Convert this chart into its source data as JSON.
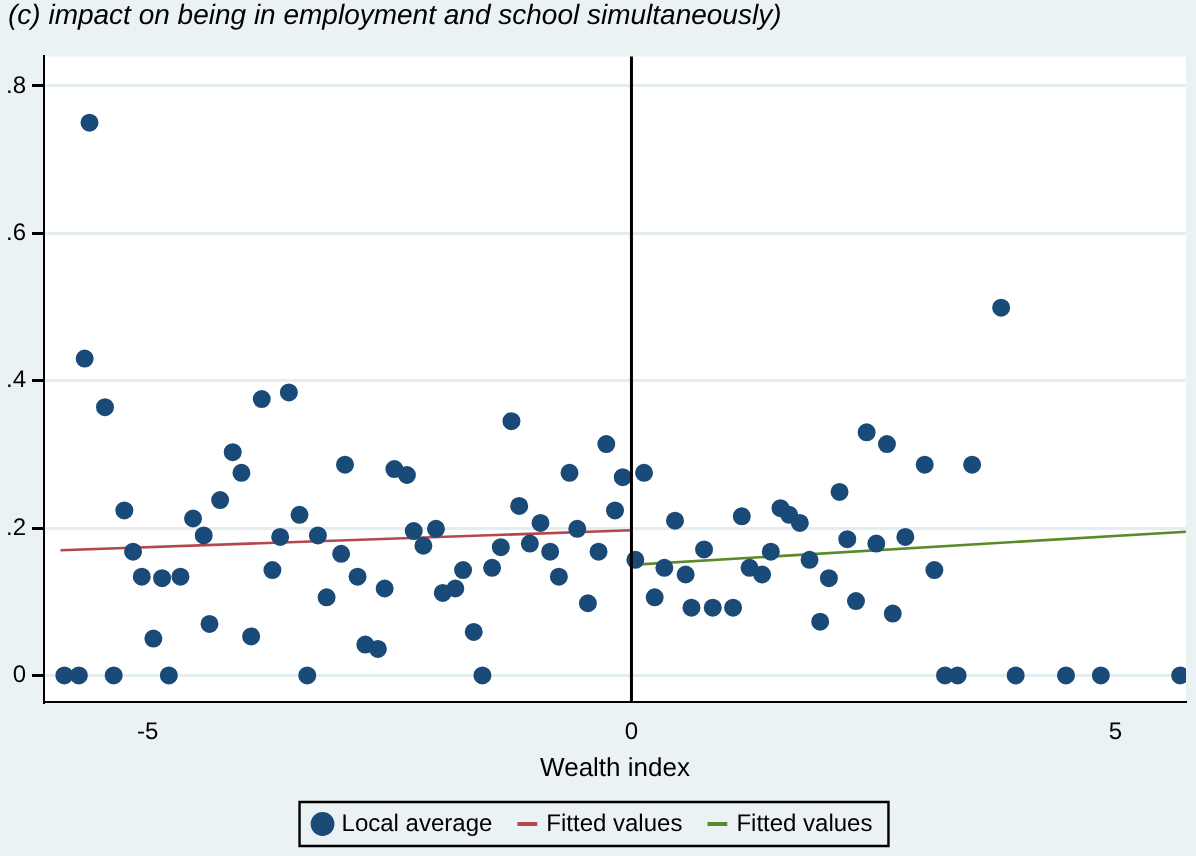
{
  "chart_data": {
    "type": "scatter",
    "title": "(c) impact on being in employment and school simultaneously)",
    "xlabel": "Wealth index",
    "xlim": [
      -6.07,
      5.73
    ],
    "ylim": [
      -0.036,
      0.84
    ],
    "xticks": [
      -5,
      0,
      5
    ],
    "yticks": [
      {
        "value": 0,
        "label": "0"
      },
      {
        "value": 0.2,
        "label": ".2"
      },
      {
        "value": 0.4,
        "label": ".4"
      },
      {
        "value": 0.6,
        "label": ".6"
      },
      {
        "value": 0.8,
        "label": ".8"
      }
    ],
    "grid": "y",
    "legend": "bottom",
    "ref_lines": [
      {
        "axis": "x",
        "value": 0,
        "color": "#000000"
      }
    ],
    "series": [
      {
        "name": "Local average",
        "marker": "circle",
        "color": "#1a4a78",
        "x": [
          -5.86,
          -5.71,
          -5.65,
          -5.6,
          -5.44,
          -5.24,
          -5.15,
          -5.06,
          -4.85,
          -4.66,
          -4.94,
          -4.78,
          -5.35,
          -4.53,
          -4.42,
          -4.36,
          -4.25,
          -4.12,
          -4.03,
          -3.93,
          -3.82,
          -3.54,
          -3.71,
          -3.63,
          -3.43,
          -3.35,
          -3.24,
          -3.15,
          -3.0,
          -2.96,
          -2.83,
          -2.75,
          -2.62,
          -2.55,
          -2.45,
          -2.32,
          -2.25,
          -2.15,
          -2.02,
          -1.95,
          -1.82,
          -1.74,
          -1.63,
          -1.54,
          -1.44,
          -1.35,
          -1.24,
          -1.16,
          -1.05,
          -0.94,
          -0.84,
          -0.75,
          -0.64,
          -0.56,
          -0.45,
          -0.34,
          -0.26,
          -0.17,
          -0.09,
          0.13,
          0.04,
          0.24,
          0.34,
          0.45,
          0.56,
          0.62,
          0.84,
          1.05,
          0.75,
          1.14,
          1.22,
          1.35,
          1.44,
          1.54,
          1.63,
          1.74,
          1.84,
          1.95,
          2.04,
          2.15,
          2.23,
          2.32,
          2.43,
          2.53,
          2.64,
          2.7,
          2.83,
          3.03,
          3.13,
          3.24,
          3.37,
          3.52,
          3.82,
          3.97,
          4.49,
          4.85,
          5.67
        ],
        "values": [
          0,
          0,
          0.43,
          0.75,
          0.364,
          0.224,
          0.168,
          0.134,
          0.132,
          0.134,
          0.05,
          0,
          0,
          0.213,
          0.19,
          0.07,
          0.238,
          0.303,
          0.275,
          0.053,
          0.375,
          0.384,
          0.143,
          0.188,
          0.218,
          0,
          0.19,
          0.106,
          0.165,
          0.286,
          0.134,
          0.042,
          0.036,
          0.118,
          0.28,
          0.272,
          0.196,
          0.176,
          0.199,
          0.112,
          0.118,
          0.143,
          0.059,
          0,
          0.146,
          0.174,
          0.345,
          0.23,
          0.179,
          0.207,
          0.168,
          0.134,
          0.275,
          0.199,
          0.098,
          0.168,
          0.314,
          0.224,
          0.269,
          0.275,
          0.157,
          0.106,
          0.146,
          0.21,
          0.137,
          0.092,
          0.092,
          0.092,
          0.171,
          0.216,
          0.146,
          0.137,
          0.168,
          0.227,
          0.218,
          0.207,
          0.157,
          0.073,
          0.132,
          0.249,
          0.185,
          0.101,
          0.33,
          0.179,
          0.314,
          0.084,
          0.188,
          0.286,
          0.143,
          0,
          0,
          0.286,
          0.499,
          0,
          0,
          0,
          0
        ]
      },
      {
        "name": "Fitted values",
        "type": "line",
        "color": "#b5474b",
        "x": [
          -5.9,
          0
        ],
        "values": [
          0.17,
          0.197
        ]
      },
      {
        "name": "Fitted values",
        "type": "line",
        "color": "#5a8a2a",
        "x": [
          0,
          5.73
        ],
        "values": [
          0.15,
          0.195
        ]
      }
    ]
  }
}
